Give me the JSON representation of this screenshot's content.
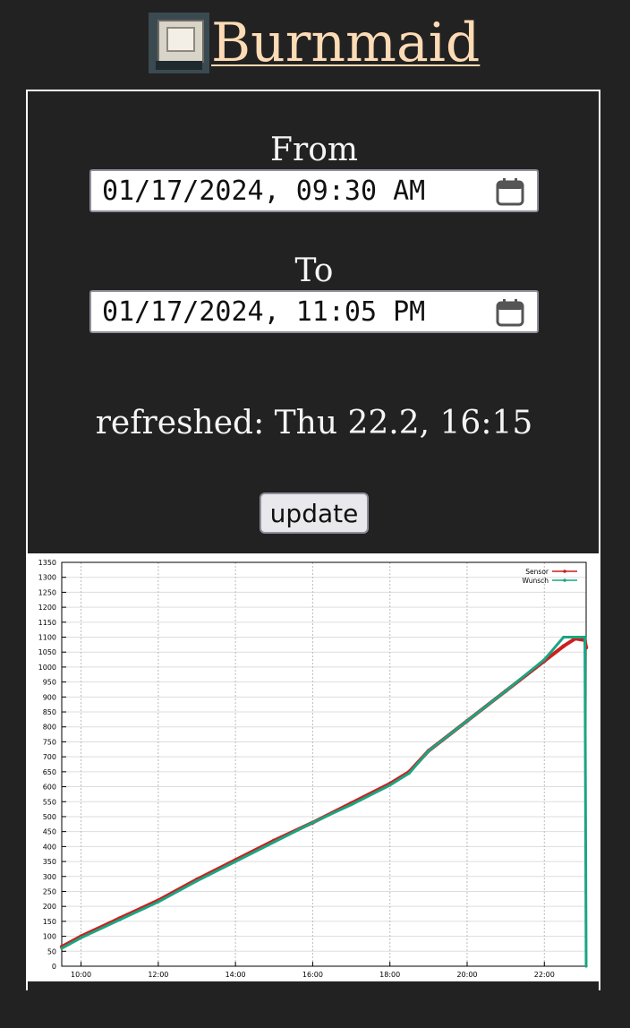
{
  "header": {
    "title": "Burnmaid",
    "logo_icon": "kiln-logo-icon"
  },
  "form": {
    "from_label": "From",
    "from_value": "01/17/2024, 09:30 AM",
    "to_label": "To",
    "to_value": "01/17/2024, 11:05 PM",
    "refreshed_text": "refreshed: Thu 22.2, 16:15",
    "update_label": "update"
  },
  "colors": {
    "background": "#222222",
    "title_link": "#fddbb5",
    "sensor": "#cc1f1f",
    "target": "#1aa583"
  },
  "chart_data": {
    "type": "line",
    "x_tick_labels": [
      "10:00",
      "12:00",
      "14:00",
      "16:00",
      "18:00",
      "20:00",
      "22:00"
    ],
    "x_ticks_hours": [
      10,
      12,
      14,
      16,
      18,
      20,
      22
    ],
    "xlim_hours": [
      9.5,
      23.083
    ],
    "ylim": [
      0,
      1350
    ],
    "y_ticks": [
      0,
      50,
      100,
      150,
      200,
      250,
      300,
      350,
      400,
      450,
      500,
      550,
      600,
      650,
      700,
      750,
      800,
      850,
      900,
      950,
      1000,
      1050,
      1100,
      1150,
      1200,
      1250,
      1300,
      1350
    ],
    "grid": true,
    "legend_position": "top-right",
    "series": [
      {
        "name": "Sensor",
        "color": "#cc1f1f",
        "x_hours": [
          9.5,
          10.0,
          11.0,
          12.0,
          13.0,
          14.0,
          15.0,
          16.0,
          17.0,
          18.0,
          18.5,
          19.0,
          20.0,
          21.0,
          22.0,
          22.5,
          22.8,
          23.05,
          23.083
        ],
        "values": [
          65,
          100,
          160,
          220,
          290,
          355,
          420,
          480,
          545,
          610,
          650,
          720,
          820,
          920,
          1020,
          1070,
          1095,
          1090,
          1065
        ]
      },
      {
        "name": "Wunsch",
        "color": "#1aa583",
        "x_hours": [
          9.5,
          10.0,
          11.0,
          12.0,
          13.0,
          14.0,
          15.0,
          16.0,
          17.0,
          18.0,
          18.5,
          19.0,
          20.0,
          21.0,
          22.0,
          22.5,
          23.05,
          23.083
        ],
        "values": [
          60,
          95,
          155,
          215,
          285,
          350,
          415,
          480,
          540,
          605,
          645,
          720,
          820,
          920,
          1025,
          1100,
          1100,
          0
        ]
      }
    ]
  }
}
